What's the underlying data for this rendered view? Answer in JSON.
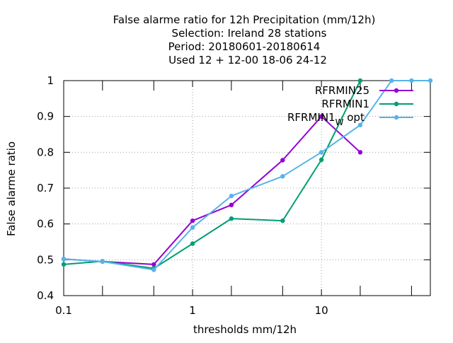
{
  "chart_data": {
    "type": "line",
    "title_lines": [
      "False alarme ratio  for 12h Precipitation (mm/12h)",
      "Selection: Ireland      28 stations",
      "Period: 20180601-20180614",
      "Used  12 + 12-00 18-06 24-12"
    ],
    "xlabel": "thresholds mm/12h",
    "ylabel": "False alarme ratio",
    "xscale": "log",
    "xlim": [
      0.1,
      70
    ],
    "ylim": [
      0.4,
      1.0
    ],
    "xticks": [
      {
        "value": 0.1,
        "label": "0.1"
      },
      {
        "value": 1,
        "label": "1"
      },
      {
        "value": 10,
        "label": "10"
      }
    ],
    "xminorticks": [
      0.2,
      0.5,
      2,
      5,
      20,
      50
    ],
    "yticks": [
      {
        "value": 0.4,
        "label": "0.4"
      },
      {
        "value": 0.5,
        "label": "0.5"
      },
      {
        "value": 0.6,
        "label": "0.6"
      },
      {
        "value": 0.7,
        "label": "0.7"
      },
      {
        "value": 0.8,
        "label": "0.8"
      },
      {
        "value": 0.9,
        "label": "0.9"
      },
      {
        "value": 1.0,
        "label": "1"
      }
    ],
    "grid": true,
    "legend_position": "top-right",
    "series": [
      {
        "name": "RFRMIN25",
        "color": "#9400d3",
        "x": [
          0.1,
          0.2,
          0.5,
          1,
          2,
          5,
          10,
          20
        ],
        "y": [
          0.502,
          0.495,
          0.487,
          0.609,
          0.653,
          0.778,
          0.9,
          0.8
        ]
      },
      {
        "name": "RFRMIN1",
        "color": "#009e73",
        "x": [
          0.1,
          0.2,
          0.5,
          1,
          2,
          5,
          10,
          20
        ],
        "y": [
          0.487,
          0.496,
          0.476,
          0.545,
          0.615,
          0.609,
          0.779,
          1.0
        ]
      },
      {
        "name": "RFRMIN1",
        "name_subscript": "W",
        "name_suffix": "opt",
        "color": "#56b4e9",
        "x": [
          0.1,
          0.2,
          0.5,
          1,
          2,
          5,
          10,
          20,
          35,
          50,
          70
        ],
        "y": [
          0.502,
          0.495,
          0.472,
          0.59,
          0.678,
          0.733,
          0.8,
          0.876,
          1.0,
          1.0,
          1.0
        ]
      }
    ]
  }
}
